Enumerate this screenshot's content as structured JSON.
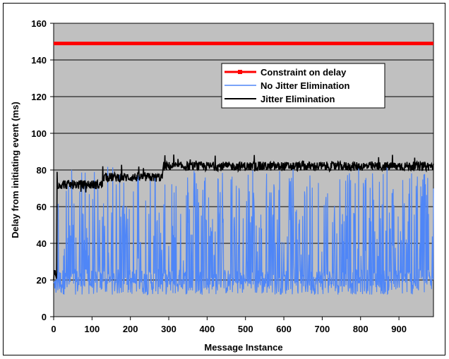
{
  "chart_data": {
    "type": "line",
    "title": "",
    "xlabel": "Message Instance",
    "ylabel": "Delay from initiating event (ms)",
    "xlim": [
      0,
      990
    ],
    "ylim": [
      0,
      160
    ],
    "x_ticks": [
      0,
      100,
      200,
      300,
      400,
      500,
      600,
      700,
      800,
      900
    ],
    "y_ticks": [
      0,
      20,
      40,
      60,
      80,
      100,
      120,
      140,
      160
    ],
    "grid": "horizontal",
    "background": "#c0c0c0",
    "legend_position": "upper-right",
    "series": [
      {
        "name": "Constraint on delay",
        "color": "#ff0000",
        "marker": "square",
        "x": [
          0,
          990
        ],
        "y": [
          149,
          149
        ]
      },
      {
        "name": "No Jitter Elimination",
        "color": "#4f86f7",
        "marker": "none",
        "description_level": "oscillates between about 12 and 82 ms",
        "range": [
          12,
          82
        ]
      },
      {
        "name": "Jitter Elimination",
        "color": "#000000",
        "marker": "none",
        "steps": [
          {
            "x": [
              0,
              8
            ],
            "y": [
              20,
              27
            ]
          },
          {
            "x": [
              8,
              130
            ],
            "y_mean": 72
          },
          {
            "x": [
              130,
              285
            ],
            "y_mean": 76
          },
          {
            "x": [
              285,
              990
            ],
            "y_mean": 82
          }
        ]
      }
    ]
  }
}
